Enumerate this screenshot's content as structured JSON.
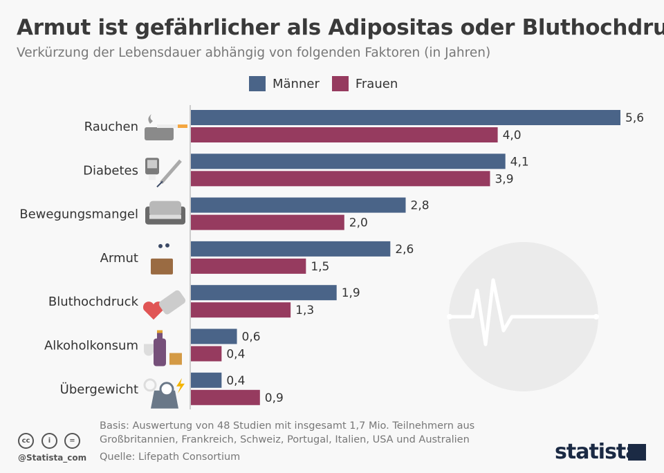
{
  "header": {
    "title": "Armut ist gefährlicher als Adipositas oder Bluthochdruck",
    "subtitle": "Verkürzung der Lebensdauer abhängig von folgenden Faktoren (in Jahren)"
  },
  "colors": {
    "maenner": "#4a6488",
    "frauen": "#963b5f"
  },
  "chart_data": {
    "type": "bar",
    "orientation": "horizontal",
    "categories": [
      "Rauchen",
      "Diabetes",
      "Bewegungsmangel",
      "Armut",
      "Bluthochdruck",
      "Alkoholkonsum",
      "Übergewicht"
    ],
    "icons": [
      "ashtray-cigarette-icon",
      "glucometer-syringe-icon",
      "sofa-icon",
      "wallet-icon",
      "heart-pills-icon",
      "wine-whisky-icon",
      "scale-icon"
    ],
    "series": [
      {
        "name": "Männer",
        "values": [
          5.6,
          4.1,
          2.8,
          2.6,
          1.9,
          0.6,
          0.4
        ],
        "labels": [
          "5,6",
          "4,1",
          "2,8",
          "2,6",
          "1,9",
          "0,6",
          "0,4"
        ]
      },
      {
        "name": "Frauen",
        "values": [
          4.0,
          3.9,
          2.0,
          1.5,
          1.3,
          0.4,
          0.9
        ],
        "labels": [
          "4,0",
          "3,9",
          "2,0",
          "1,5",
          "1,3",
          "0,4",
          "0,9"
        ]
      }
    ],
    "xlim": [
      0,
      5.6
    ],
    "grid": false,
    "legend": "top"
  },
  "footer": {
    "basis_line1": "Basis: Auswertung von 48 Studien mit insgesamt 1,7 Mio. Teilnehmern aus",
    "basis_line2": "Großbritannien, Frankreich, Schweiz, Portugal, Italien, USA und Australien",
    "source": "Quelle: Lifepath Consortium",
    "handle": "@Statista_com",
    "cc": [
      "cc",
      "i",
      "="
    ],
    "logo": "statista"
  }
}
